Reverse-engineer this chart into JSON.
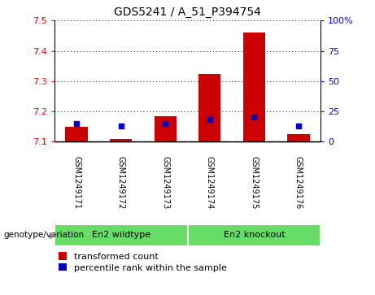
{
  "title": "GDS5241 / A_51_P394754",
  "samples": [
    "GSM1249171",
    "GSM1249172",
    "GSM1249173",
    "GSM1249174",
    "GSM1249175",
    "GSM1249176"
  ],
  "group_labels": [
    "En2 wildtype",
    "En2 knockout"
  ],
  "red_values": [
    7.15,
    7.11,
    7.185,
    7.325,
    7.46,
    7.125
  ],
  "blue_values_pct": [
    15,
    13,
    15,
    18,
    20,
    13
  ],
  "ylim_left": [
    7.1,
    7.5
  ],
  "ylim_right": [
    0,
    100
  ],
  "yticks_left": [
    7.1,
    7.2,
    7.3,
    7.4,
    7.5
  ],
  "yticks_right": [
    0,
    25,
    50,
    75,
    100
  ],
  "ytick_labels_right": [
    "0",
    "25",
    "50",
    "75",
    "100%"
  ],
  "bar_width": 0.5,
  "red_color": "#CC0000",
  "blue_color": "#0000CC",
  "bg_color": "#d0d0d0",
  "green_color": "#66DD66",
  "label_row": "genotype/variation",
  "legend_red": "transformed count",
  "legend_blue": "percentile rank within the sample"
}
